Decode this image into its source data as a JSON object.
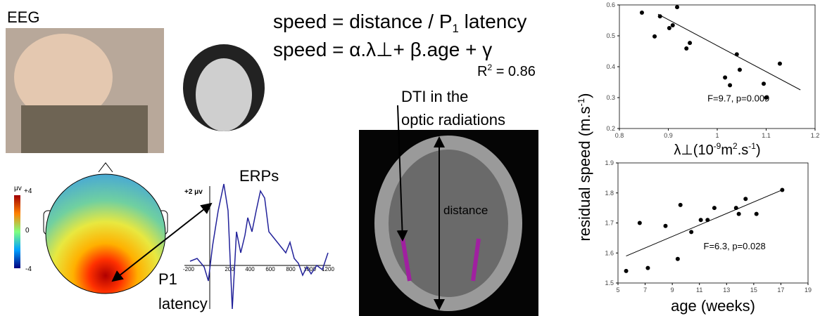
{
  "labels": {
    "eeg": "EEG",
    "eq1": [
      "speed = distance / P",
      "1",
      " latency"
    ],
    "eq2": "speed = α.λ⊥+ β.age + γ",
    "r2": [
      "R",
      "2",
      " = 0.86"
    ],
    "dti": [
      "DTI in the",
      "optic radiations"
    ],
    "erps": "ERPs",
    "p1": [
      "P1",
      "latency"
    ],
    "distance": "distance",
    "colorbar": [
      "μv",
      "+4",
      "0",
      "-4"
    ],
    "erp_axis": {
      "y": "+2 μv",
      "x": [
        "-200",
        "200",
        "400",
        "600",
        "800",
        "1000",
        "1200"
      ]
    }
  },
  "shared_y_label": [
    "residual speed (m.s",
    "-1",
    ")"
  ],
  "chart_data": [
    {
      "type": "scatter",
      "x_label": [
        "λ⊥(10",
        "-9",
        "m",
        "2",
        ".s",
        "-1",
        ")"
      ],
      "annotation": "F=9.7, p=0.009",
      "x": [
        0.846,
        0.872,
        0.883,
        0.902,
        0.909,
        0.918,
        0.937,
        0.944,
        1.04,
        1.046,
        1.016,
        1.026,
        1.095,
        1.1,
        1.128
      ],
      "y": [
        0.575,
        0.498,
        0.563,
        0.525,
        0.534,
        0.593,
        0.459,
        0.477,
        0.44,
        0.39,
        0.365,
        0.34,
        0.345,
        0.3,
        0.41
      ],
      "trend_line": {
        "x": [
          0.879,
          1.17
        ],
        "y": [
          0.57,
          0.325
        ]
      },
      "color": "#000000",
      "xlim": [
        0.8,
        1.2
      ],
      "xticks": [
        0.8,
        0.9,
        1,
        1.1,
        1.2
      ],
      "ylim": [
        0.2,
        0.6
      ],
      "yticks": [
        0.2,
        0.3,
        0.4,
        0.5,
        0.6
      ]
    },
    {
      "type": "scatter",
      "x_label": [
        "age (weeks)"
      ],
      "annotation": "F=6.3, p=0.028",
      "x": [
        5.6,
        6.6,
        7.2,
        8.5,
        9.4,
        9.6,
        10.4,
        11.1,
        11.6,
        12.1,
        13.7,
        13.9,
        14.4,
        15.2,
        17.1
      ],
      "y": [
        1.54,
        1.7,
        1.55,
        1.69,
        1.58,
        1.76,
        1.67,
        1.71,
        1.71,
        1.75,
        1.75,
        1.73,
        1.78,
        1.73,
        1.81
      ],
      "trend_line": {
        "x": [
          5.6,
          17.1
        ],
        "y": [
          1.59,
          1.81
        ]
      },
      "color": "#000000",
      "xlim": [
        5,
        19
      ],
      "xticks": [
        5,
        7,
        9,
        11,
        13,
        15,
        17,
        19
      ],
      "ylim": [
        1.5,
        1.9
      ],
      "yticks": [
        1.5,
        1.6,
        1.7,
        1.8,
        1.9
      ]
    }
  ]
}
